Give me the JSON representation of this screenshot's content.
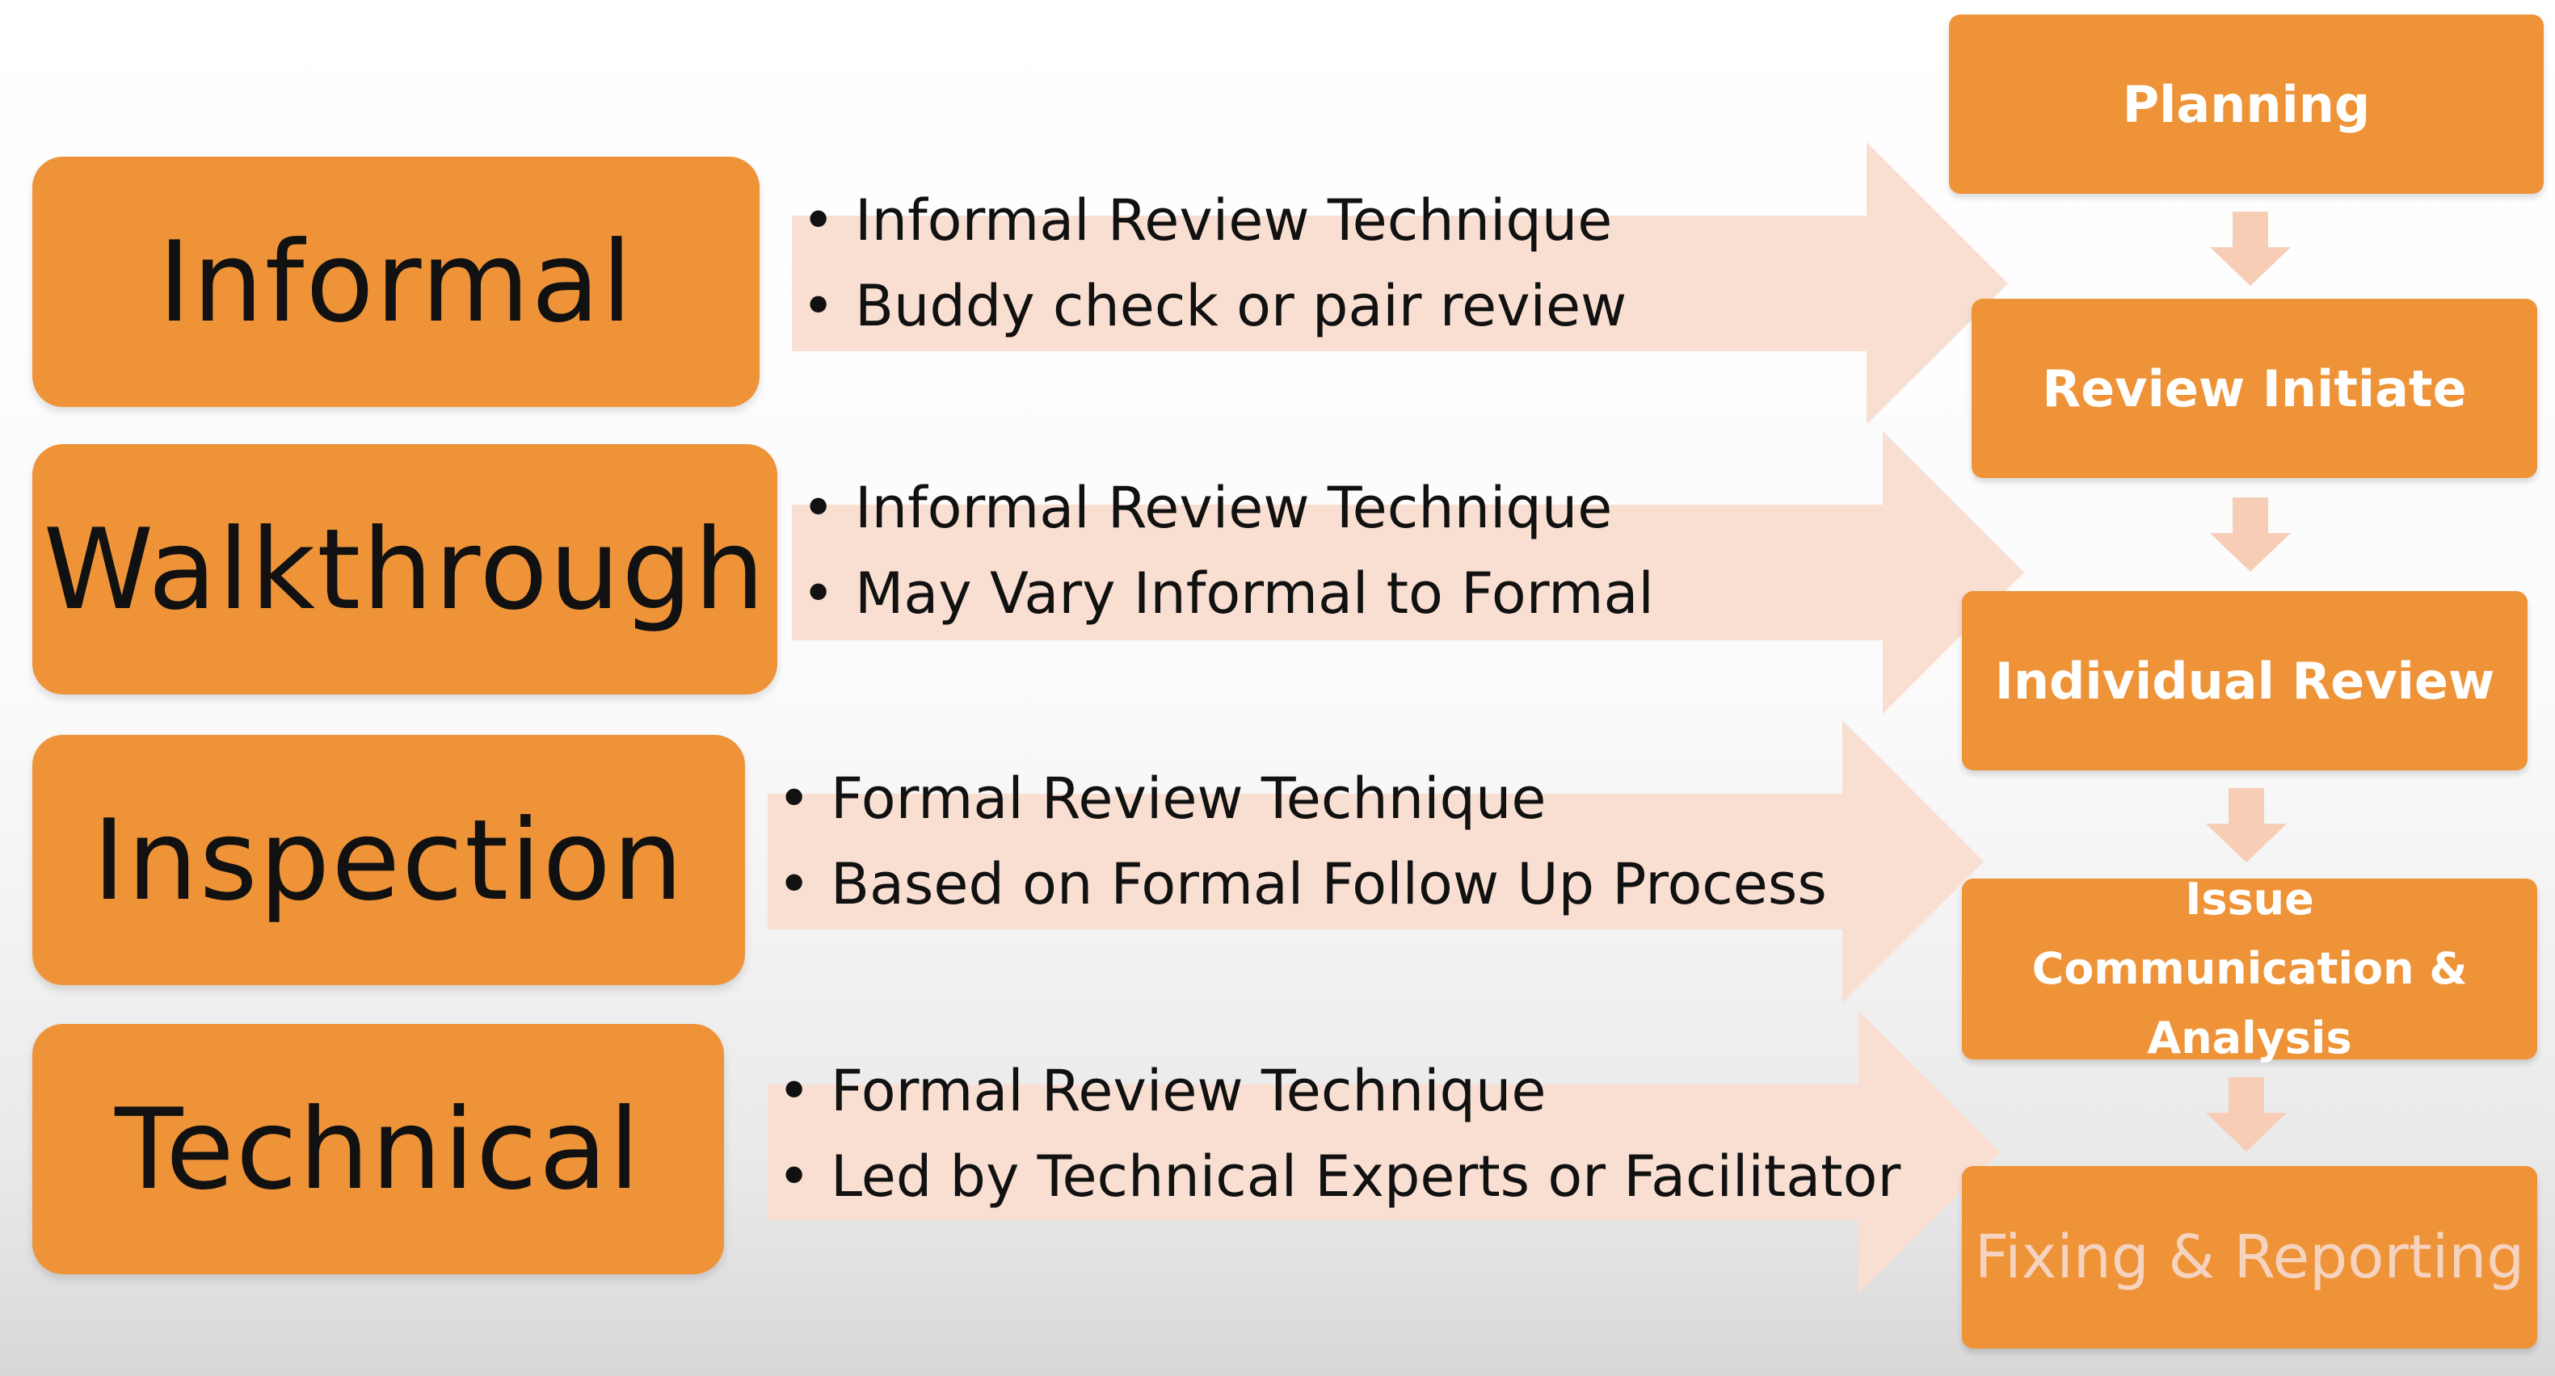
{
  "categories": [
    {
      "label": "Informal",
      "bullets": [
        "Informal Review Technique",
        "Buddy check or pair review"
      ]
    },
    {
      "label": "Walkthrough",
      "bullets": [
        "Informal Review Technique",
        "May Vary Informal to Formal"
      ]
    },
    {
      "label": "Inspection",
      "bullets": [
        "Formal  Review Technique",
        "Based on Formal Follow Up Process"
      ]
    },
    {
      "label": "Technical",
      "bullets": [
        "Formal Review Technique",
        "Led by Technical Experts or Facilitator"
      ]
    }
  ],
  "process_steps": [
    {
      "label": "Planning"
    },
    {
      "label": "Review Initiate"
    },
    {
      "label": "Individual Review"
    },
    {
      "label": "Issue Communication & Analysis",
      "lines": [
        "Issue",
        "Communication &",
        "Analysis"
      ]
    },
    {
      "label": "Fixing & Reporting"
    }
  ],
  "colors": {
    "box": "#ee9338",
    "arrow": "#f9dfd1",
    "down_arrow": "#f7cdb6",
    "step_text": "#ffffff"
  }
}
